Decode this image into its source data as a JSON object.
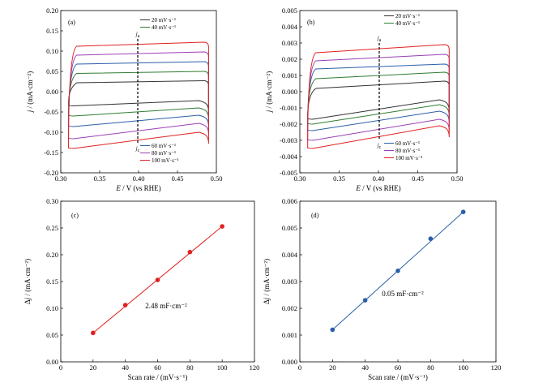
{
  "chart_data": [
    {
      "panel": "(a)",
      "type": "line",
      "subtype": "cyclic-voltammetry",
      "xlabel_italic": "E",
      "xlabel_rest": " / V (vs RHE)",
      "ylabel_italic": "j",
      "ylabel_rest": " / (mA·cm⁻²)",
      "xlim": [
        0.3,
        0.5
      ],
      "ylim": [
        -0.2,
        0.2
      ],
      "x_ticks": [
        "0.30",
        "0.35",
        "0.40",
        "0.45",
        "0.50"
      ],
      "y_ticks": [
        "-0.20",
        "-0.15",
        "-0.10",
        "-0.05",
        "0.00",
        "0.05",
        "0.10",
        "0.15",
        "0.20"
      ],
      "ja_label": "j",
      "ja_sub": "a",
      "jc_label": "j",
      "jc_sub": "c",
      "x_start": 0.31,
      "x_end": 0.49,
      "series": [
        {
          "name": "20 mV·s⁻¹",
          "color": "#333333",
          "anodic_start": 0.022,
          "anodic_end": 0.027,
          "cathodic_start": -0.035,
          "cathodic_end": -0.022
        },
        {
          "name": "40 mV·s⁻¹",
          "color": "#2e7d32",
          "anodic_start": 0.045,
          "anodic_end": 0.05,
          "cathodic_start": -0.06,
          "cathodic_end": -0.04
        },
        {
          "name": "60 mV·s⁻¹",
          "color": "#2a5fa8",
          "anodic_start": 0.068,
          "anodic_end": 0.074,
          "cathodic_start": -0.086,
          "cathodic_end": -0.058
        },
        {
          "name": "80 mV·s⁻¹",
          "color": "#9c3fb5",
          "anodic_start": 0.09,
          "anodic_end": 0.098,
          "cathodic_start": -0.116,
          "cathodic_end": -0.078
        },
        {
          "name": "100 mV·s⁻¹",
          "color": "#e02020",
          "anodic_start": 0.112,
          "anodic_end": 0.122,
          "cathodic_start": -0.14,
          "cathodic_end": -0.1
        }
      ]
    },
    {
      "panel": "(b)",
      "type": "line",
      "subtype": "cyclic-voltammetry",
      "xlabel_italic": "E",
      "xlabel_rest": " / V (vs RHE)",
      "ylabel_italic": "j",
      "ylabel_rest": " / (mA·cm⁻²)",
      "xlim": [
        0.3,
        0.5
      ],
      "ylim": [
        -0.005,
        0.005
      ],
      "x_ticks": [
        "0.30",
        "0.35",
        "0.40",
        "0.45",
        "0.50"
      ],
      "y_ticks": [
        "-0.005",
        "-0.004",
        "-0.003",
        "-0.002",
        "-0.001",
        "0.000",
        "0.001",
        "0.002",
        "0.003",
        "0.004",
        "0.005"
      ],
      "ja_label": "j",
      "ja_sub": "a",
      "jc_label": "j",
      "jc_sub": "c",
      "x_start": 0.31,
      "x_end": 0.49,
      "series": [
        {
          "name": "20 mV·s⁻¹",
          "color": "#333333",
          "anodic_start": 0.0002,
          "anodic_end": 0.00065,
          "cathodic_start": -0.0017,
          "cathodic_end": -0.0005
        },
        {
          "name": "40 mV·s⁻¹",
          "color": "#2e7d32",
          "anodic_start": 0.0008,
          "anodic_end": 0.0012,
          "cathodic_start": -0.002,
          "cathodic_end": -0.0008
        },
        {
          "name": "60 mV·s⁻¹",
          "color": "#2a5fa8",
          "anodic_start": 0.0014,
          "anodic_end": 0.0017,
          "cathodic_start": -0.0024,
          "cathodic_end": -0.0012
        },
        {
          "name": "80 mV·s⁻¹",
          "color": "#9c3fb5",
          "anodic_start": 0.0019,
          "anodic_end": 0.0023,
          "cathodic_start": -0.003,
          "cathodic_end": -0.0017
        },
        {
          "name": "100 mV·s⁻¹",
          "color": "#e02020",
          "anodic_start": 0.0024,
          "anodic_end": 0.0029,
          "cathodic_start": -0.0035,
          "cathodic_end": -0.0021
        }
      ]
    },
    {
      "panel": "(c)",
      "type": "scatter",
      "fit": "linear",
      "color": "#e02020",
      "xlabel": "Scan rate / (mV·s⁻¹)",
      "ylabel_prefix": "Δ",
      "ylabel_italic": "j",
      "ylabel_rest": " / (mA·cm⁻²)",
      "xlim": [
        0,
        120
      ],
      "ylim": [
        0,
        0.3
      ],
      "x_ticks": [
        "0",
        "20",
        "40",
        "60",
        "80",
        "100",
        "120"
      ],
      "y_ticks": [
        "0.00",
        "0.05",
        "0.10",
        "0.15",
        "0.20",
        "0.25",
        "0.30"
      ],
      "x": [
        20,
        40,
        60,
        80,
        100
      ],
      "y": [
        0.054,
        0.106,
        0.153,
        0.205,
        0.253
      ],
      "annotation": "2.48 mF·cm⁻²"
    },
    {
      "panel": "(d)",
      "type": "scatter",
      "fit": "linear",
      "color": "#2a5fa8",
      "xlabel": "Scan rate / (mV·s⁻¹)",
      "ylabel_prefix": "Δ",
      "ylabel_italic": "j",
      "ylabel_rest": " / (mA·cm⁻²)",
      "xlim": [
        0,
        120
      ],
      "ylim": [
        0,
        0.006
      ],
      "x_ticks": [
        "0",
        "20",
        "40",
        "60",
        "80",
        "100",
        "120"
      ],
      "y_ticks": [
        "0.000",
        "0.001",
        "0.002",
        "0.003",
        "0.004",
        "0.005",
        "0.006"
      ],
      "x": [
        20,
        40,
        60,
        80,
        100
      ],
      "y": [
        0.0012,
        0.0023,
        0.0034,
        0.0046,
        0.0056
      ],
      "annotation": "0.05 mF·cm⁻²"
    }
  ]
}
